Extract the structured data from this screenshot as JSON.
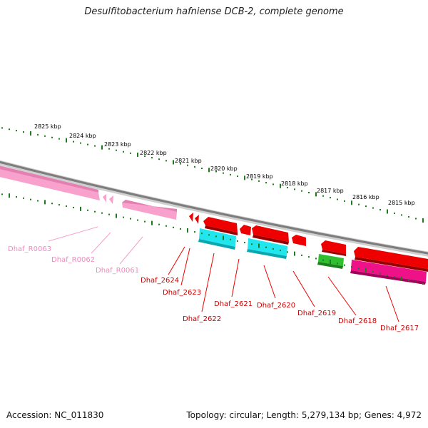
{
  "header": {
    "title": "Desulfitobacterium hafniense DCB-2, complete genome"
  },
  "footer": {
    "accession": "Accession: NC_011830",
    "summary": "Topology: circular; Length: 5,279,134 bp; Genes: 4,972"
  },
  "colors": {
    "tick": "#1f7a1f",
    "backbone": "#8a8a8a",
    "rna_gene": "#f7a1cc",
    "rna_label": "#f08bbf",
    "cds_gene": "#ee0000",
    "cds_label": "#cc0000",
    "cyan_feature": "#22e6ee",
    "green_feature": "#2fbf2f",
    "magenta_feature": "#ee1188"
  },
  "scale": {
    "kbp_labels": [
      "2825 kbp",
      "2824 kbp",
      "2823 kbp",
      "2822 kbp",
      "2821 kbp",
      "2820 kbp",
      "2819 kbp",
      "2818 kbp",
      "2817 kbp",
      "2816 kbp",
      "2815 kbp"
    ]
  },
  "genes": [
    {
      "label": "Dhaf_R0063",
      "type": "rna"
    },
    {
      "label": "Dhaf_R0062",
      "type": "rna"
    },
    {
      "label": "Dhaf_R0061",
      "type": "rna"
    },
    {
      "label": "Dhaf_2624",
      "type": "cds"
    },
    {
      "label": "Dhaf_2623",
      "type": "cds"
    },
    {
      "label": "Dhaf_2622",
      "type": "cds"
    },
    {
      "label": "Dhaf_2621",
      "type": "cds"
    },
    {
      "label": "Dhaf_2620",
      "type": "cds"
    },
    {
      "label": "Dhaf_2619",
      "type": "cds"
    },
    {
      "label": "Dhaf_2618",
      "type": "cds"
    },
    {
      "label": "Dhaf_2617",
      "type": "cds"
    }
  ]
}
